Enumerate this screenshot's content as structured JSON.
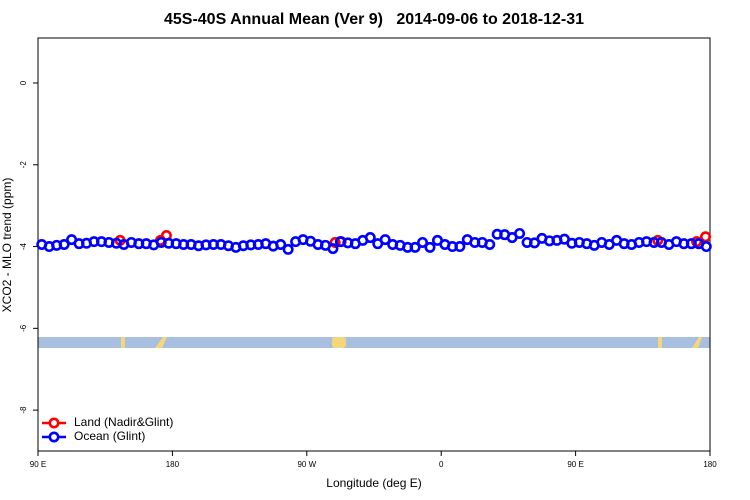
{
  "chart_data": {
    "type": "scatter",
    "title": "45S-40S Annual Mean (Ver 9)   2014-09-06 to 2018-12-31",
    "x_label": "Longitude (deg E)",
    "y_label": "XCO2 - MLO trend (ppm)",
    "xlim": [
      90,
      540
    ],
    "ylim": [
      -9,
      1.1
    ],
    "xticks": [
      {
        "value": 90,
        "label": "90 E"
      },
      180,
      {
        "value": 270,
        "label": "90 W"
      },
      {
        "value": 360,
        "label": "0"
      },
      {
        "value": 450,
        "label": "90 E"
      },
      {
        "value": 540,
        "label": "180"
      }
    ],
    "yticks": [
      0,
      -2,
      -4,
      -6,
      -8
    ],
    "legend": "bottomleft",
    "series": [
      {
        "name": "Land (Nadir&Glint)",
        "color": "#ff0000",
        "x": [
          145,
          172,
          176,
          289,
          293,
          505,
          531,
          537
        ],
        "values": [
          -3.85,
          -3.85,
          -3.73,
          -3.9,
          -3.88,
          -3.85,
          -3.88,
          -3.76
        ]
      },
      {
        "name": "Ocean (Glint)",
        "color": "#0000ff",
        "x": [
          92.5,
          97.5,
          102.5,
          107.5,
          112.5,
          117.5,
          122.5,
          127.5,
          132.5,
          137.5,
          142.5,
          147.5,
          152.5,
          157.5,
          162.5,
          167.5,
          172.5,
          177.5,
          182.5,
          187.5,
          192.5,
          197.5,
          202.5,
          207.5,
          212.5,
          217.5,
          222.5,
          227.5,
          232.5,
          237.5,
          242.5,
          247.5,
          252.5,
          257.5,
          262.5,
          267.5,
          272.5,
          277.5,
          282.5,
          287.5,
          292.5,
          297.5,
          302.5,
          307.5,
          312.5,
          317.5,
          322.5,
          327.5,
          332.5,
          337.5,
          342.5,
          347.5,
          352.5,
          357.5,
          362.5,
          367.5,
          372.5,
          377.5,
          382.5,
          387.5,
          392.5,
          397.5,
          402.5,
          407.5,
          412.5,
          417.5,
          422.5,
          427.5,
          432.5,
          437.5,
          442.5,
          447.5,
          452.5,
          457.5,
          462.5,
          467.5,
          472.5,
          477.5,
          482.5,
          487.5,
          492.5,
          497.5,
          502.5,
          507.5,
          512.5,
          517.5,
          522.5,
          527.5,
          532.5,
          537.5
        ],
        "values": [
          -3.95,
          -4.0,
          -3.97,
          -3.95,
          -3.83,
          -3.93,
          -3.92,
          -3.88,
          -3.88,
          -3.9,
          -3.92,
          -3.95,
          -3.9,
          -3.93,
          -3.93,
          -3.96,
          -3.9,
          -3.92,
          -3.93,
          -3.95,
          -3.95,
          -3.98,
          -3.96,
          -3.95,
          -3.95,
          -3.98,
          -4.02,
          -3.98,
          -3.96,
          -3.95,
          -3.93,
          -3.99,
          -3.95,
          -4.07,
          -3.88,
          -3.83,
          -3.87,
          -3.95,
          -3.97,
          -4.05,
          -3.88,
          -3.91,
          -3.93,
          -3.85,
          -3.78,
          -3.93,
          -3.83,
          -3.95,
          -3.97,
          -4.02,
          -4.02,
          -3.9,
          -4.02,
          -3.85,
          -3.95,
          -4.0,
          -4.0,
          -3.83,
          -3.9,
          -3.9,
          -3.95,
          -3.7,
          -3.71,
          -3.78,
          -3.68,
          -3.9,
          -3.91,
          -3.8,
          -3.86,
          -3.85,
          -3.82,
          -3.92,
          -3.9,
          -3.93,
          -3.97,
          -3.9,
          -3.95,
          -3.85,
          -3.93,
          -3.95,
          -3.9,
          -3.88,
          -3.9,
          -3.9,
          -3.95,
          -3.88,
          -3.93,
          -3.93,
          -3.93,
          -4.0
        ]
      }
    ]
  }
}
